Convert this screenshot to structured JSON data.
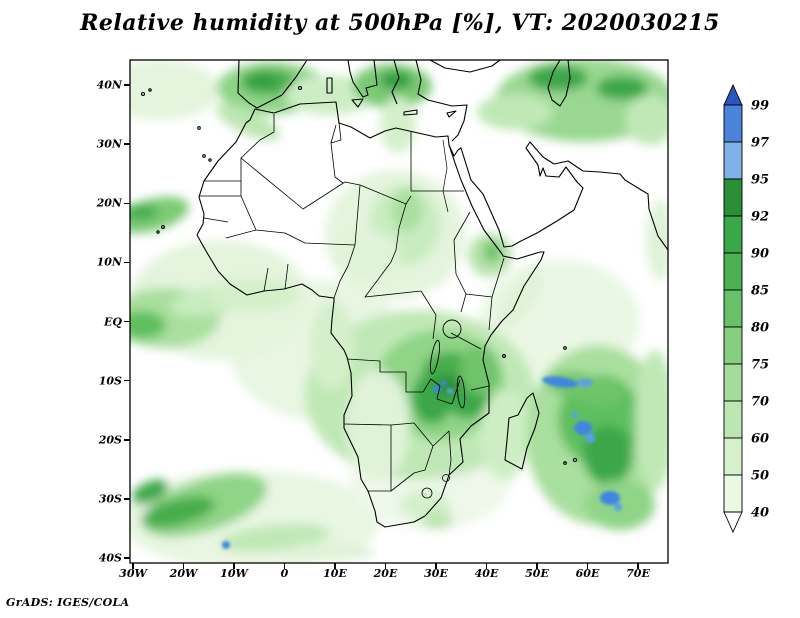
{
  "title": "Relative humidity at 500hPa [%], VT: 2020030215",
  "credit": "GrADS: IGES/COLA",
  "colors": {
    "background": "#ffffff",
    "frame": "#000000",
    "text": "#000000"
  },
  "chart_data": {
    "type": "heatmap",
    "title": "Relative humidity at 500hPa [%], VT: 2020030215",
    "variable": "Relative humidity",
    "level": "500hPa",
    "units": "%",
    "valid_time_label": "VT: 2020030215",
    "region": {
      "lon_min": -30,
      "lon_max": 76,
      "lat_min": -41,
      "lat_max": 44
    },
    "grid": "off",
    "legend_position": "right",
    "x_ticks": [
      {
        "label": "30W",
        "lon": -30
      },
      {
        "label": "20W",
        "lon": -20
      },
      {
        "label": "10W",
        "lon": -10
      },
      {
        "label": "0",
        "lon": 0
      },
      {
        "label": "10E",
        "lon": 10
      },
      {
        "label": "20E",
        "lon": 20
      },
      {
        "label": "30E",
        "lon": 30
      },
      {
        "label": "40E",
        "lon": 40
      },
      {
        "label": "50E",
        "lon": 50
      },
      {
        "label": "60E",
        "lon": 60
      },
      {
        "label": "70E",
        "lon": 70
      }
    ],
    "y_ticks": [
      {
        "label": "40N",
        "lat": 40
      },
      {
        "label": "30N",
        "lat": 30
      },
      {
        "label": "20N",
        "lat": 20
      },
      {
        "label": "10N",
        "lat": 10
      },
      {
        "label": "EQ",
        "lat": 0
      },
      {
        "label": "10S",
        "lat": -10
      },
      {
        "label": "20S",
        "lat": -20
      },
      {
        "label": "30S",
        "lat": -30
      },
      {
        "label": "40S",
        "lat": -40
      }
    ],
    "colorbar": {
      "labels": [
        "99",
        "97",
        "95",
        "92",
        "90",
        "85",
        "80",
        "75",
        "70",
        "60",
        "50",
        "40"
      ],
      "levels": [
        99,
        97,
        95,
        92,
        90,
        85,
        80,
        75,
        70,
        60,
        50,
        40
      ],
      "segment_colors_top_to_bottom": [
        "#4b83da",
        "#7fb2e6",
        "#2a8f36",
        "#3aa748",
        "#4cb152",
        "#68c168",
        "#86cf80",
        "#a3dc9a",
        "#bde7b2",
        "#d6f0cc",
        "#ebf8e4"
      ],
      "arrow_top_color": "#2c55c4",
      "arrow_bottom_color": "#ffffff"
    }
  }
}
